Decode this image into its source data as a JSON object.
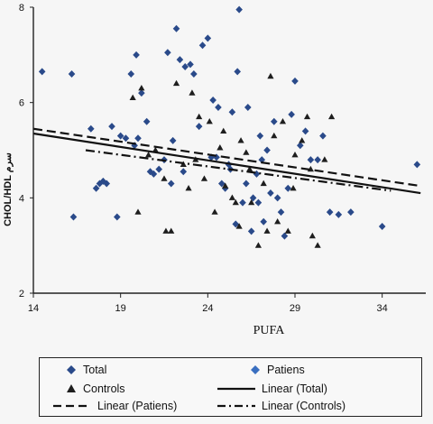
{
  "chart_data": {
    "type": "scatter",
    "xlabel": "PUFA",
    "ylabel": "CHOL/HDL سرم",
    "xlim": [
      14,
      36.5
    ],
    "ylim": [
      2,
      8
    ],
    "xticks": [
      14,
      19,
      24,
      29,
      34
    ],
    "yticks": [
      2,
      4,
      6,
      8
    ],
    "grid": false,
    "legend_position": "bottom",
    "colors": {
      "patiens": "#2a4a8a",
      "controls": "#1e1e1e",
      "lines": "#111111",
      "axis": "#222222"
    },
    "series": [
      {
        "name": "Patiens",
        "marker": "diamond",
        "points": [
          [
            14.5,
            6.65
          ],
          [
            16.2,
            6.6
          ],
          [
            16.3,
            3.6
          ],
          [
            17.3,
            5.45
          ],
          [
            17.6,
            4.2
          ],
          [
            17.8,
            4.3
          ],
          [
            18,
            4.35
          ],
          [
            18.2,
            4.3
          ],
          [
            18.5,
            5.5
          ],
          [
            18.8,
            3.6
          ],
          [
            19,
            5.3
          ],
          [
            19.3,
            5.25
          ],
          [
            19.6,
            6.6
          ],
          [
            19.8,
            5.1
          ],
          [
            19.9,
            7.0
          ],
          [
            20,
            5.25
          ],
          [
            20.2,
            6.2
          ],
          [
            20.5,
            5.6
          ],
          [
            20.7,
            4.55
          ],
          [
            20.9,
            4.5
          ],
          [
            21.2,
            4.6
          ],
          [
            21.5,
            4.8
          ],
          [
            21.7,
            7.05
          ],
          [
            22,
            5.2
          ],
          [
            22.2,
            7.55
          ],
          [
            22.4,
            6.9
          ],
          [
            22.7,
            6.75
          ],
          [
            23,
            6.8
          ],
          [
            23.2,
            6.6
          ],
          [
            23.5,
            5.5
          ],
          [
            23.7,
            7.2
          ],
          [
            24,
            7.35
          ],
          [
            24.2,
            4.85
          ],
          [
            24.5,
            4.85
          ],
          [
            24.6,
            5.9
          ],
          [
            24.8,
            4.3
          ],
          [
            25,
            4.2
          ],
          [
            25.2,
            4.7
          ],
          [
            25.4,
            5.8
          ],
          [
            25.6,
            3.45
          ],
          [
            25.7,
            6.65
          ],
          [
            25.8,
            7.95
          ],
          [
            26,
            3.9
          ],
          [
            26.2,
            4.3
          ],
          [
            26.3,
            5.9
          ],
          [
            26.5,
            3.3
          ],
          [
            26.6,
            4.0
          ],
          [
            26.8,
            4.5
          ],
          [
            27,
            5.3
          ],
          [
            27.2,
            3.5
          ],
          [
            27.4,
            5.0
          ],
          [
            27.6,
            4.1
          ],
          [
            27.8,
            5.6
          ],
          [
            28,
            4.0
          ],
          [
            28.2,
            3.7
          ],
          [
            28.4,
            3.2
          ],
          [
            28.6,
            4.2
          ],
          [
            28.8,
            5.75
          ],
          [
            29,
            6.45
          ],
          [
            29.3,
            5.1
          ],
          [
            29.6,
            5.4
          ],
          [
            29.9,
            4.8
          ],
          [
            30.3,
            4.8
          ],
          [
            30.6,
            5.3
          ],
          [
            31,
            3.7
          ],
          [
            31.5,
            3.65
          ],
          [
            32.2,
            3.7
          ],
          [
            34,
            3.4
          ],
          [
            36,
            4.7
          ],
          [
            24.3,
            6.05
          ],
          [
            22.6,
            4.55
          ],
          [
            27.1,
            4.8
          ],
          [
            26.9,
            3.9
          ],
          [
            21.9,
            4.3
          ],
          [
            25.3,
            4.6
          ]
        ]
      },
      {
        "name": "Controls",
        "marker": "triangle",
        "points": [
          [
            19.7,
            6.1
          ],
          [
            20.2,
            6.3
          ],
          [
            20.6,
            4.9
          ],
          [
            21,
            5.0
          ],
          [
            21.5,
            4.4
          ],
          [
            21.9,
            3.3
          ],
          [
            22.2,
            6.4
          ],
          [
            22.6,
            4.7
          ],
          [
            23.1,
            6.2
          ],
          [
            23.5,
            5.7
          ],
          [
            23.8,
            4.4
          ],
          [
            24.1,
            5.6
          ],
          [
            24.4,
            3.7
          ],
          [
            24.7,
            5.05
          ],
          [
            25,
            4.25
          ],
          [
            25.4,
            4.0
          ],
          [
            25.6,
            3.9
          ],
          [
            25.9,
            5.2
          ],
          [
            26.2,
            4.95
          ],
          [
            26.5,
            3.9
          ],
          [
            26.9,
            3.0
          ],
          [
            27.2,
            4.3
          ],
          [
            27.6,
            6.55
          ],
          [
            27.8,
            5.3
          ],
          [
            28,
            3.5
          ],
          [
            28.3,
            5.6
          ],
          [
            28.6,
            3.3
          ],
          [
            29,
            4.9
          ],
          [
            29.4,
            5.2
          ],
          [
            29.7,
            5.7
          ],
          [
            30,
            3.2
          ],
          [
            30.3,
            3.0
          ],
          [
            30.7,
            4.8
          ],
          [
            31.1,
            5.7
          ],
          [
            20.0,
            3.7
          ],
          [
            21.6,
            3.3
          ],
          [
            23.3,
            4.8
          ],
          [
            24.9,
            5.4
          ],
          [
            26.4,
            4.6
          ],
          [
            28.9,
            4.2
          ],
          [
            22.9,
            4.2
          ],
          [
            25.8,
            3.4
          ],
          [
            27.4,
            3.3
          ],
          [
            29.9,
            4.6
          ]
        ]
      },
      {
        "name": "Linear (Total)",
        "style": "solid",
        "x": [
          14,
          36.2
        ],
        "y": [
          5.35,
          4.1
        ]
      },
      {
        "name": "Linear (Patiens)",
        "style": "dash",
        "x": [
          14,
          36.2
        ],
        "y": [
          5.45,
          4.25
        ]
      },
      {
        "name": "Linear (Controls)",
        "style": "dashdot",
        "x": [
          17,
          34.5
        ],
        "y": [
          5.0,
          4.15
        ]
      }
    ],
    "legend": [
      "Total",
      "Patiens",
      "Controls",
      "Linear (Total)",
      "Linear (Patiens)",
      "Linear (Controls)"
    ]
  }
}
